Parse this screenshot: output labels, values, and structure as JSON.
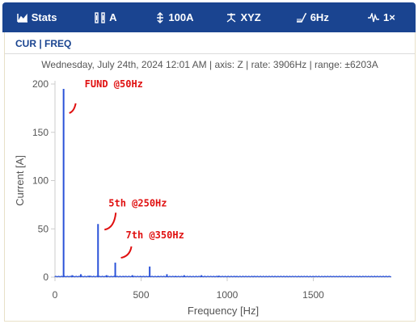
{
  "toolbar": {
    "items": [
      {
        "label": "Stats",
        "icon": "area-chart-icon"
      },
      {
        "label": "A",
        "icon": "unit-bars-icon"
      },
      {
        "label": "100A",
        "icon": "range-arrows-icon"
      },
      {
        "label": "XYZ",
        "icon": "axes-icon"
      },
      {
        "label": "6Hz",
        "icon": "filter-ramp-icon"
      },
      {
        "label": "1×",
        "icon": "waveform-icon"
      }
    ],
    "bg_color": "#1a4490"
  },
  "panel": {
    "title": "CUR | FREQ",
    "subtitle": "Wednesday, July 24th, 2024 12:01 AM | axis: Z | rate: 3906Hz | range: ±6203A"
  },
  "chart_data": {
    "type": "line",
    "xlabel": "Frequency [Hz]",
    "ylabel": "Current [A]",
    "xlim": [
      0,
      1953
    ],
    "ylim": [
      0,
      200
    ],
    "x_ticks": [
      0,
      500,
      1000,
      1500
    ],
    "y_ticks": [
      0,
      50,
      100,
      150,
      200
    ],
    "grid": false,
    "series_color": "#2a52d8",
    "peaks": [
      {
        "x": 50,
        "y": 195
      },
      {
        "x": 100,
        "y": 2
      },
      {
        "x": 150,
        "y": 3
      },
      {
        "x": 200,
        "y": 1.5
      },
      {
        "x": 250,
        "y": 55
      },
      {
        "x": 300,
        "y": 2
      },
      {
        "x": 350,
        "y": 15
      },
      {
        "x": 400,
        "y": 1
      },
      {
        "x": 450,
        "y": 2
      },
      {
        "x": 500,
        "y": 1
      },
      {
        "x": 550,
        "y": 11
      },
      {
        "x": 600,
        "y": 1
      },
      {
        "x": 650,
        "y": 3
      },
      {
        "x": 700,
        "y": 1
      },
      {
        "x": 750,
        "y": 2
      },
      {
        "x": 850,
        "y": 2
      },
      {
        "x": 950,
        "y": 1.5
      },
      {
        "x": 1050,
        "y": 1
      },
      {
        "x": 1150,
        "y": 1
      }
    ],
    "annotations": [
      {
        "text": "FUND @50Hz",
        "x": 50,
        "y": 195
      },
      {
        "text": "5th @250Hz",
        "x": 250,
        "y": 55
      },
      {
        "text": "7th @350Hz",
        "x": 350,
        "y": 15
      }
    ],
    "annotation_color": "#e01010"
  }
}
